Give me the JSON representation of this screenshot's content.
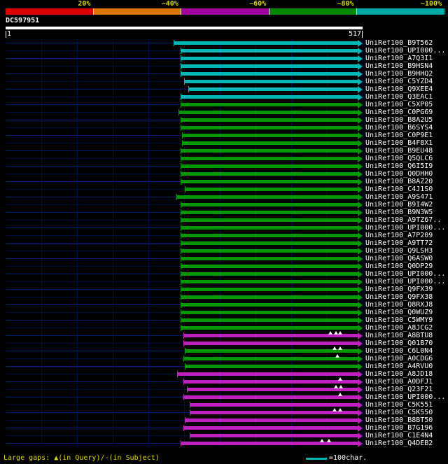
{
  "header": {
    "scale_labels": [
      "20%",
      "~40%",
      "~60%",
      "~80%",
      "~100%"
    ],
    "scale_colors": [
      "#dd0000",
      "#dd7700",
      "#a000a0",
      "#008800",
      "#00a8a8"
    ],
    "query_id": "DC597951",
    "query_start": "1",
    "query_end": "517"
  },
  "footer": {
    "gaps_legend": "Large gaps: ▲(in Query)/-(in Subject)",
    "scale_unit_label": "=100char."
  },
  "palette": {
    "background": "#000000",
    "grid_line": "#001a70",
    "grid_line_dim": "#000d40",
    "query_bar": "#ffffff",
    "text": "#ffffff",
    "yellow_text": "#d8d800",
    "gap_marker": "#ffffff",
    "bar_colors": {
      "cyan": "#00b7b7",
      "green": "#009a00",
      "magenta": "#c020c0"
    }
  },
  "chart_data": {
    "type": "bar",
    "orientation": "horizontal",
    "title": "DC597951",
    "query_length": 517,
    "x_range": [
      1,
      517
    ],
    "identity_legend": {
      "labels": [
        "20%",
        "~40%",
        "~60%",
        "~80%",
        "~100%"
      ],
      "colors": [
        "#dd0000",
        "#dd7700",
        "#a000a0",
        "#008800",
        "#00a8a8"
      ]
    },
    "hits": [
      {
        "label": "UniRef100_B9T562",
        "color": "cyan",
        "start": 243,
        "end": 517,
        "gaps": []
      },
      {
        "label": "UniRef100_UPI000...",
        "color": "cyan",
        "start": 253,
        "end": 517,
        "gaps": []
      },
      {
        "label": "UniRef100_A7Q3I1",
        "color": "cyan",
        "start": 253,
        "end": 517,
        "gaps": []
      },
      {
        "label": "UniRef100_B9HSN4",
        "color": "cyan",
        "start": 253,
        "end": 517,
        "gaps": []
      },
      {
        "label": "UniRef100_B9HHQ2",
        "color": "cyan",
        "start": 253,
        "end": 517,
        "gaps": []
      },
      {
        "label": "UniRef100_C5YZD4",
        "color": "cyan",
        "start": 258,
        "end": 517,
        "gaps": []
      },
      {
        "label": "UniRef100_Q9XEE4",
        "color": "cyan",
        "start": 265,
        "end": 517,
        "gaps": []
      },
      {
        "label": "UniRef100_Q3EAC1",
        "color": "cyan",
        "start": 253,
        "end": 517,
        "gaps": []
      },
      {
        "label": "UniRef100_C5XP05",
        "color": "green",
        "start": 253,
        "end": 517,
        "gaps": []
      },
      {
        "label": "UniRef100_C0PG69",
        "color": "green",
        "start": 250,
        "end": 517,
        "gaps": []
      },
      {
        "label": "UniRef100_B8A2U5",
        "color": "green",
        "start": 253,
        "end": 517,
        "gaps": []
      },
      {
        "label": "UniRef100_B6SYS4",
        "color": "green",
        "start": 253,
        "end": 517,
        "gaps": []
      },
      {
        "label": "UniRef100_C0P9E1",
        "color": "green",
        "start": 255,
        "end": 517,
        "gaps": []
      },
      {
        "label": "UniRef100_B4F8X1",
        "color": "green",
        "start": 255,
        "end": 517,
        "gaps": []
      },
      {
        "label": "UniRef100_B9EU48",
        "color": "green",
        "start": 253,
        "end": 517,
        "gaps": []
      },
      {
        "label": "UniRef100_Q5QLC6",
        "color": "green",
        "start": 253,
        "end": 517,
        "gaps": []
      },
      {
        "label": "UniRef100_Q6I5I9",
        "color": "green",
        "start": 253,
        "end": 517,
        "gaps": []
      },
      {
        "label": "UniRef100_Q0DHH0",
        "color": "green",
        "start": 253,
        "end": 517,
        "gaps": []
      },
      {
        "label": "UniRef100_B8AZ20",
        "color": "green",
        "start": 253,
        "end": 517,
        "gaps": []
      },
      {
        "label": "UniRef100_C4J1S0",
        "color": "green",
        "start": 260,
        "end": 517,
        "gaps": []
      },
      {
        "label": "UniRef100_A9S471",
        "color": "green",
        "start": 247,
        "end": 517,
        "gaps": []
      },
      {
        "label": "UniRef100_B9I4W2",
        "color": "green",
        "start": 253,
        "end": 517,
        "gaps": []
      },
      {
        "label": "UniRef100_B9N3W5",
        "color": "green",
        "start": 253,
        "end": 517,
        "gaps": []
      },
      {
        "label": "UniRef100_A9TZ67..",
        "color": "green",
        "start": 253,
        "end": 517,
        "gaps": []
      },
      {
        "label": "UniRef100_UPI000...",
        "color": "green",
        "start": 253,
        "end": 517,
        "gaps": []
      },
      {
        "label": "UniRef100_A7P209",
        "color": "green",
        "start": 253,
        "end": 517,
        "gaps": []
      },
      {
        "label": "UniRef100_A9TT72",
        "color": "green",
        "start": 253,
        "end": 517,
        "gaps": []
      },
      {
        "label": "UniRef100_Q9LSH3",
        "color": "green",
        "start": 253,
        "end": 517,
        "gaps": []
      },
      {
        "label": "UniRef100_Q6ASW0",
        "color": "green",
        "start": 253,
        "end": 517,
        "gaps": []
      },
      {
        "label": "UniRef100_Q0DP29",
        "color": "green",
        "start": 253,
        "end": 517,
        "gaps": []
      },
      {
        "label": "UniRef100_UPI000...",
        "color": "green",
        "start": 253,
        "end": 517,
        "gaps": []
      },
      {
        "label": "UniRef100_UPI000...",
        "color": "green",
        "start": 253,
        "end": 517,
        "gaps": []
      },
      {
        "label": "UniRef100_Q9FX39",
        "color": "green",
        "start": 253,
        "end": 517,
        "gaps": []
      },
      {
        "label": "UniRef100_Q9FX38",
        "color": "green",
        "start": 253,
        "end": 517,
        "gaps": []
      },
      {
        "label": "UniRef100_Q8RXJ8",
        "color": "green",
        "start": 253,
        "end": 517,
        "gaps": []
      },
      {
        "label": "UniRef100_Q0WUZ9",
        "color": "green",
        "start": 253,
        "end": 517,
        "gaps": []
      },
      {
        "label": "UniRef100_C5WMY9",
        "color": "green",
        "start": 253,
        "end": 517,
        "gaps": []
      },
      {
        "label": "UniRef100_A8JCG2",
        "color": "green",
        "start": 253,
        "end": 517,
        "gaps": []
      },
      {
        "label": "UniRef100_A8BTU8",
        "color": "magenta",
        "start": 257,
        "end": 517,
        "gaps": [
          470,
          478,
          485
        ]
      },
      {
        "label": "UniRef100_Q01B70",
        "color": "magenta",
        "start": 257,
        "end": 517,
        "gaps": []
      },
      {
        "label": "UniRef100_C6L0N4",
        "color": "green",
        "start": 260,
        "end": 517,
        "gaps": [
          476,
          485
        ]
      },
      {
        "label": "UniRef100_A0CDG6",
        "color": "green",
        "start": 257,
        "end": 517,
        "gaps": [
          481
        ]
      },
      {
        "label": "UniRef100_A4RVU0",
        "color": "green",
        "start": 260,
        "end": 517,
        "gaps": []
      },
      {
        "label": "UniRef100_A8JD18",
        "color": "magenta",
        "start": 248,
        "end": 517,
        "gaps": []
      },
      {
        "label": "UniRef100_A0DFJ1",
        "color": "magenta",
        "start": 257,
        "end": 517,
        "gaps": [
          485
        ]
      },
      {
        "label": "UniRef100_Q23F21",
        "color": "magenta",
        "start": 263,
        "end": 517,
        "gaps": [
          478,
          486
        ]
      },
      {
        "label": "UniRef100_UPI000...",
        "color": "magenta",
        "start": 257,
        "end": 517,
        "gaps": [
          485
        ]
      },
      {
        "label": "UniRef100_C5K551",
        "color": "magenta",
        "start": 267,
        "end": 517,
        "gaps": []
      },
      {
        "label": "UniRef100_C5K550",
        "color": "magenta",
        "start": 267,
        "end": 517,
        "gaps": [
          476,
          485
        ]
      },
      {
        "label": "UniRef100_B8BT50",
        "color": "magenta",
        "start": 260,
        "end": 517,
        "gaps": []
      },
      {
        "label": "UniRef100_B7G196",
        "color": "magenta",
        "start": 257,
        "end": 517,
        "gaps": []
      },
      {
        "label": "UniRef100_C1E4N4",
        "color": "magenta",
        "start": 267,
        "end": 517,
        "gaps": []
      },
      {
        "label": "UniRef100_Q4DEB2",
        "color": "magenta",
        "start": 253,
        "end": 517,
        "gaps": [
          458,
          468
        ]
      }
    ]
  }
}
